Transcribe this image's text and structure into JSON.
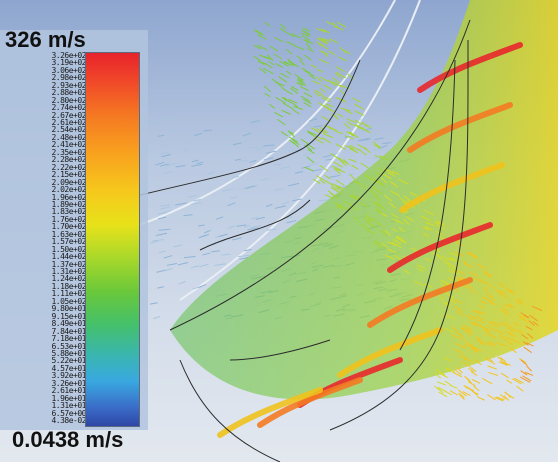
{
  "legend": {
    "max_label": "326 m/s",
    "min_label": "0.0438 m/s",
    "tick_labels": [
      "3.26e+02",
      "3.19e+02",
      "3.06e+02",
      "2.98e+02",
      "2.93e+02",
      "2.88e+02",
      "2.80e+02",
      "2.74e+02",
      "2.67e+02",
      "2.61e+02",
      "2.54e+02",
      "2.48e+02",
      "2.41e+02",
      "2.35e+02",
      "2.28e+02",
      "2.22e+02",
      "2.15e+02",
      "2.09e+02",
      "2.02e+02",
      "1.96e+02",
      "1.89e+02",
      "1.83e+02",
      "1.76e+02",
      "1.70e+02",
      "1.63e+02",
      "1.57e+02",
      "1.50e+02",
      "1.44e+02",
      "1.37e+02",
      "1.31e+02",
      "1.24e+02",
      "1.18e+02",
      "1.11e+02",
      "1.05e+02",
      "9.80e+01",
      "9.15e+01",
      "8.49e+01",
      "7.84e+01",
      "7.18e+01",
      "6.53e+01",
      "5.88e+01",
      "5.22e+01",
      "4.57e+01",
      "3.92e+01",
      "3.26e+01",
      "2.61e+01",
      "1.96e+01",
      "1.31e+01",
      "6.57e+00",
      "4.38e-02"
    ]
  },
  "colors": {
    "background_top": "#8ea6cf",
    "legend_panel": "#b2c4de",
    "scale_high": "#e8222c",
    "scale_mid": "#6ac83a",
    "scale_low": "#2f47a6"
  }
}
